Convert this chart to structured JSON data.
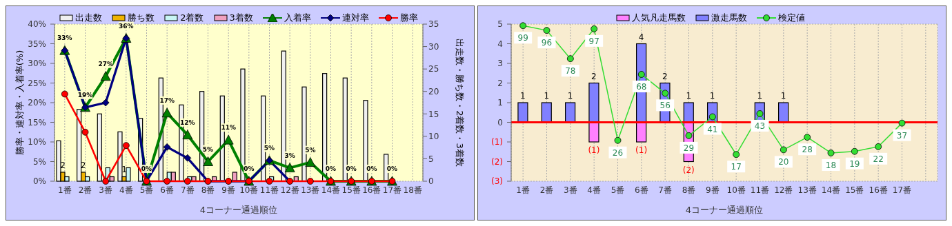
{
  "chart_data": [
    {
      "type": "bar",
      "categories": [
        "1番",
        "2番",
        "3番",
        "4番",
        "5番",
        "6番",
        "7番",
        "8番",
        "9番",
        "10番",
        "11番",
        "12番",
        "13番",
        "14番",
        "15番",
        "16番",
        "17番",
        "18番"
      ],
      "series": [
        {
          "name": "出走数",
          "color": "#f0f0f0",
          "axis": "y2",
          "values": [
            9,
            16,
            15,
            11,
            14,
            23,
            17,
            20,
            19,
            25,
            19,
            29,
            21,
            24,
            23,
            18,
            6,
            0
          ]
        },
        {
          "name": "勝ち数",
          "color": "#f0b400",
          "axis": "y2",
          "values": [
            2,
            2,
            0,
            1,
            0,
            0,
            0,
            0,
            0,
            0,
            0,
            0,
            0,
            0,
            0,
            0,
            0,
            0
          ],
          "value_labels": [
            "2",
            "2",
            null,
            "1",
            null,
            null,
            null,
            null,
            null,
            null,
            null,
            null,
            null,
            null,
            null,
            null,
            null,
            null
          ]
        },
        {
          "name": "2着数",
          "color": "#c8f5f5",
          "axis": "y2",
          "values": [
            1,
            1,
            3,
            3,
            0,
            2,
            1,
            0,
            0,
            0,
            1,
            0,
            0,
            0,
            0,
            0,
            0,
            0
          ]
        },
        {
          "name": "3着数",
          "color": "#f0a0c0",
          "axis": "y2",
          "values": [
            0,
            0,
            1,
            0,
            0,
            2,
            1,
            1,
            2,
            0,
            0,
            1,
            0,
            0,
            0,
            0,
            0,
            0
          ]
        },
        {
          "name": "入着率",
          "type": "line",
          "color": "#008000",
          "marker": "triangle",
          "values": [
            33.3,
            18.8,
            26.7,
            36.4,
            0,
            17.4,
            11.8,
            5,
            10.5,
            0,
            5.3,
            3.4,
            4.8,
            0,
            0,
            0,
            0,
            null
          ],
          "value_labels": [
            "33%",
            "19%",
            "27%",
            "36%",
            "0%",
            "17%",
            "12%",
            "5%",
            "11%",
            "0%",
            "5%",
            "3%",
            "5%",
            "0%",
            "0%",
            "0%",
            "0%",
            null
          ]
        },
        {
          "name": "連対率",
          "type": "line",
          "color": "#000080",
          "marker": "diamond",
          "values": [
            33.3,
            18.8,
            20,
            36.4,
            0,
            8.7,
            5.9,
            0,
            0,
            0,
            5.3,
            0,
            null,
            null,
            null,
            null,
            null,
            null
          ]
        },
        {
          "name": "勝率",
          "type": "line",
          "color": "#ff0000",
          "marker": "circle",
          "values": [
            22.2,
            12.5,
            0,
            9.1,
            0,
            0,
            0,
            0,
            0,
            0,
            0,
            0,
            0,
            0,
            0,
            0,
            0,
            null
          ]
        }
      ],
      "ylim": [
        0,
        40
      ],
      "yticks": [
        {
          "value": 0,
          "label": "0%"
        },
        {
          "value": 5,
          "label": "5%"
        },
        {
          "value": 10,
          "label": "10%"
        },
        {
          "value": 15,
          "label": "15%"
        },
        {
          "value": 20,
          "label": "20%"
        },
        {
          "value": 25,
          "label": "25%"
        },
        {
          "value": 30,
          "label": "30%"
        },
        {
          "value": 35,
          "label": "35%"
        },
        {
          "value": 40,
          "label": "40%"
        }
      ],
      "y2lim": [
        0,
        35
      ],
      "y2ticks": [
        0,
        5,
        10,
        15,
        20,
        25,
        30,
        35
      ],
      "xlabel": "4コーナー通過順位",
      "ylabel": "勝率・連対率・入着率(%)",
      "y2label": "出走数・勝ち数・2着数・3着数",
      "grid": true,
      "legend": "top"
    },
    {
      "type": "bar",
      "stacked": true,
      "categories": [
        "1番",
        "2番",
        "3番",
        "4番",
        "5番",
        "6番",
        "7番",
        "8番",
        "9番",
        "10番",
        "11番",
        "12番",
        "13番",
        "14番",
        "15番",
        "16番",
        "17番",
        null
      ],
      "series": [
        {
          "name": "人気凡走馬数",
          "color": "#ff80ff",
          "values": [
            0,
            0,
            0,
            -1,
            0,
            -1,
            0,
            -2,
            0,
            0,
            0,
            0,
            0,
            0,
            0,
            0,
            0,
            null
          ],
          "value_labels": [
            null,
            null,
            null,
            "(1)",
            null,
            "(1)",
            null,
            "(2)",
            null,
            null,
            null,
            null,
            null,
            null,
            null,
            null,
            null,
            null
          ]
        },
        {
          "name": "激走馬数",
          "color": "#8080ff",
          "values": [
            1,
            1,
            1,
            2,
            0,
            4,
            2,
            1,
            1,
            0,
            1,
            1,
            0,
            0,
            0,
            0,
            0,
            null
          ],
          "value_labels": [
            "1",
            "1",
            "1",
            "2",
            null,
            "4",
            "2",
            "1",
            "1",
            null,
            "1",
            "1",
            null,
            null,
            null,
            null,
            null,
            null
          ]
        },
        {
          "name": "検定値",
          "type": "line",
          "axis": "y2",
          "color": "#33dd33",
          "marker": "circle",
          "values": [
            99,
            96,
            78,
            97,
            26,
            68,
            56,
            29,
            41,
            17,
            43,
            20,
            28,
            18,
            19,
            22,
            37,
            null
          ],
          "value_labels": [
            "99",
            "96",
            "78",
            "97",
            "26",
            "68",
            "56",
            "29",
            "41",
            "17",
            "43",
            "20",
            "28",
            "18",
            "19",
            "22",
            "37",
            null
          ]
        }
      ],
      "ylim": [
        -3,
        5
      ],
      "yticks": [
        {
          "value": -3,
          "label": "(3)"
        },
        {
          "value": -2,
          "label": "(2)"
        },
        {
          "value": -1,
          "label": "(1)"
        },
        0,
        1,
        2,
        3,
        4,
        5
      ],
      "ref_lines": [
        {
          "axis": "y",
          "value": 0,
          "color": "#ff0000"
        }
      ],
      "xlabel": "4コーナー通過順位",
      "grid": true,
      "legend": "top"
    }
  ]
}
